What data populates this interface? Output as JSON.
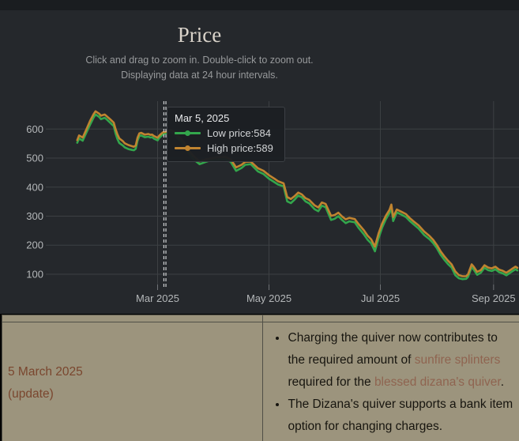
{
  "chart_panel": {
    "title": "Price",
    "subtitle_line1": "Click and drag to zoom in. Double-click to zoom out.",
    "subtitle_line2": "Displaying data at 24 hour intervals.",
    "colors": {
      "panel_bg": "#25282c",
      "top_strip_bg": "#1a1d20",
      "grid": "#3d4043",
      "axis_label": "#b4b7b9",
      "low_line": "#33a64c",
      "high_line": "#c08430",
      "crosshair": "#d9dbdc"
    }
  },
  "tooltip": {
    "date": "Mar 5, 2025",
    "date_iso": "2025-03-05",
    "separator": " : ",
    "rows": [
      {
        "label": "Low price",
        "value": "584",
        "swatch": "#33a64c"
      },
      {
        "label": "High price",
        "value": "589",
        "swatch": "#c08430"
      }
    ]
  },
  "chart_data": {
    "type": "line",
    "title": "Price",
    "grid": true,
    "x_axis": {
      "ticks": [
        {
          "date": "2025-03-01",
          "label": "Mar 2025"
        },
        {
          "date": "2025-05-01",
          "label": "May 2025"
        },
        {
          "date": "2025-07-01",
          "label": "Jul 2025"
        },
        {
          "date": "2025-09-01",
          "label": "Sep 2025"
        }
      ]
    },
    "y_axis": {
      "ticks": [
        100,
        200,
        300,
        400,
        500,
        600
      ],
      "range": [
        65,
        695
      ]
    },
    "hover": {
      "date": "2025-03-05",
      "low": 584,
      "high": 589
    },
    "series": [
      {
        "name": "Low price",
        "key": "low",
        "color": "#33a64c"
      },
      {
        "name": "High price",
        "key": "high",
        "color": "#c08430"
      }
    ],
    "dates": [
      "2025-01-16",
      "2025-01-17",
      "2025-01-19",
      "2025-01-21",
      "2025-01-23",
      "2025-01-25",
      "2025-01-26",
      "2025-01-28",
      "2025-01-29",
      "2025-01-31",
      "2025-02-01",
      "2025-02-03",
      "2025-02-05",
      "2025-02-06",
      "2025-02-07",
      "2025-02-08",
      "2025-02-10",
      "2025-02-11",
      "2025-02-13",
      "2025-02-15",
      "2025-02-16",
      "2025-02-17",
      "2025-02-18",
      "2025-02-19",
      "2025-02-20",
      "2025-02-22",
      "2025-02-24",
      "2025-02-25",
      "2025-02-26",
      "2025-02-27",
      "2025-03-01",
      "2025-03-02",
      "2025-03-04",
      "2025-03-05",
      "2025-03-07",
      "2025-03-08",
      "2025-03-10",
      "2025-03-12",
      "2025-03-14",
      "2025-03-17",
      "2025-03-19",
      "2025-03-21",
      "2025-03-24",
      "2025-03-27",
      "2025-03-29",
      "2025-04-01",
      "2025-04-04",
      "2025-04-07",
      "2025-04-10",
      "2025-04-13",
      "2025-04-16",
      "2025-04-18",
      "2025-04-21",
      "2025-04-22",
      "2025-04-25",
      "2025-04-28",
      "2025-05-01",
      "2025-05-04",
      "2025-05-06",
      "2025-05-09",
      "2025-05-11",
      "2025-05-13",
      "2025-05-15",
      "2025-05-17",
      "2025-05-19",
      "2025-05-21",
      "2025-05-23",
      "2025-05-26",
      "2025-05-28",
      "2025-05-30",
      "2025-06-01",
      "2025-06-04",
      "2025-06-06",
      "2025-06-08",
      "2025-06-10",
      "2025-06-12",
      "2025-06-14",
      "2025-06-17",
      "2025-06-19",
      "2025-06-22",
      "2025-06-24",
      "2025-06-26",
      "2025-06-28",
      "2025-06-30",
      "2025-07-02",
      "2025-07-04",
      "2025-07-06",
      "2025-07-07",
      "2025-07-08",
      "2025-07-10",
      "2025-07-12",
      "2025-07-15",
      "2025-07-17",
      "2025-07-19",
      "2025-07-22",
      "2025-07-25",
      "2025-07-28",
      "2025-07-30",
      "2025-08-01",
      "2025-08-03",
      "2025-08-05",
      "2025-08-07",
      "2025-08-09",
      "2025-08-11",
      "2025-08-13",
      "2025-08-15",
      "2025-08-17",
      "2025-08-18",
      "2025-08-20",
      "2025-08-21",
      "2025-08-23",
      "2025-08-25",
      "2025-08-27",
      "2025-08-29",
      "2025-08-31",
      "2025-09-02",
      "2025-09-04",
      "2025-09-06",
      "2025-09-08",
      "2025-09-11",
      "2025-09-13",
      "2025-09-14"
    ],
    "low": [
      553,
      568,
      560,
      588,
      615,
      640,
      650,
      642,
      634,
      639,
      634,
      622,
      610,
      585,
      566,
      552,
      543,
      537,
      531,
      528,
      527,
      532,
      560,
      576,
      578,
      572,
      574,
      571,
      572,
      567,
      561,
      570,
      582,
      584,
      588,
      591,
      584,
      568,
      556,
      528,
      508,
      494,
      479,
      486,
      490,
      493,
      495,
      496,
      487,
      456,
      466,
      477,
      479,
      473,
      454,
      445,
      429,
      417,
      409,
      403,
      351,
      345,
      357,
      371,
      365,
      351,
      344,
      324,
      317,
      336,
      331,
      287,
      291,
      300,
      287,
      276,
      282,
      279,
      260,
      237,
      219,
      206,
      179,
      224,
      261,
      289,
      311,
      330,
      283,
      313,
      307,
      297,
      284,
      273,
      257,
      235,
      220,
      207,
      189,
      167,
      150,
      135,
      123,
      97,
      86,
      83,
      84,
      91,
      125,
      117,
      98,
      105,
      122,
      114,
      111,
      117,
      107,
      103,
      96,
      109,
      117,
      113
    ],
    "high": [
      562,
      578,
      571,
      599,
      628,
      652,
      661,
      653,
      646,
      650,
      645,
      634,
      622,
      600,
      582,
      568,
      558,
      551,
      545,
      541,
      539,
      543,
      570,
      585,
      587,
      581,
      583,
      580,
      581,
      576,
      570,
      578,
      589,
      589,
      594,
      597,
      591,
      577,
      566,
      540,
      519,
      505,
      489,
      495,
      498,
      501,
      503,
      504,
      496,
      468,
      477,
      487,
      488,
      482,
      465,
      456,
      441,
      429,
      420,
      413,
      366,
      359,
      369,
      381,
      375,
      362,
      356,
      337,
      330,
      347,
      342,
      301,
      304,
      312,
      299,
      289,
      294,
      290,
      273,
      251,
      233,
      220,
      195,
      240,
      275,
      301,
      322,
      340,
      297,
      323,
      317,
      307,
      294,
      283,
      268,
      247,
      231,
      218,
      200,
      179,
      162,
      147,
      134,
      110,
      97,
      93,
      93,
      100,
      134,
      127,
      108,
      114,
      131,
      123,
      120,
      126,
      116,
      112,
      105,
      118,
      126,
      122
    ]
  },
  "updates_table": {
    "date_link": "5 March 2025",
    "update_link": "(update)",
    "bullets": [
      {
        "segments": [
          {
            "text": "Charging the quiver now contributes to the required amount of "
          },
          {
            "text": "sunfire splinters",
            "link": true
          },
          {
            "text": " required for the "
          },
          {
            "text": "blessed dizana's quiver",
            "link": true
          },
          {
            "text": "."
          }
        ]
      },
      {
        "segments": [
          {
            "text": "The Dizana's quiver supports a bank item option for changing charges."
          }
        ]
      }
    ]
  }
}
